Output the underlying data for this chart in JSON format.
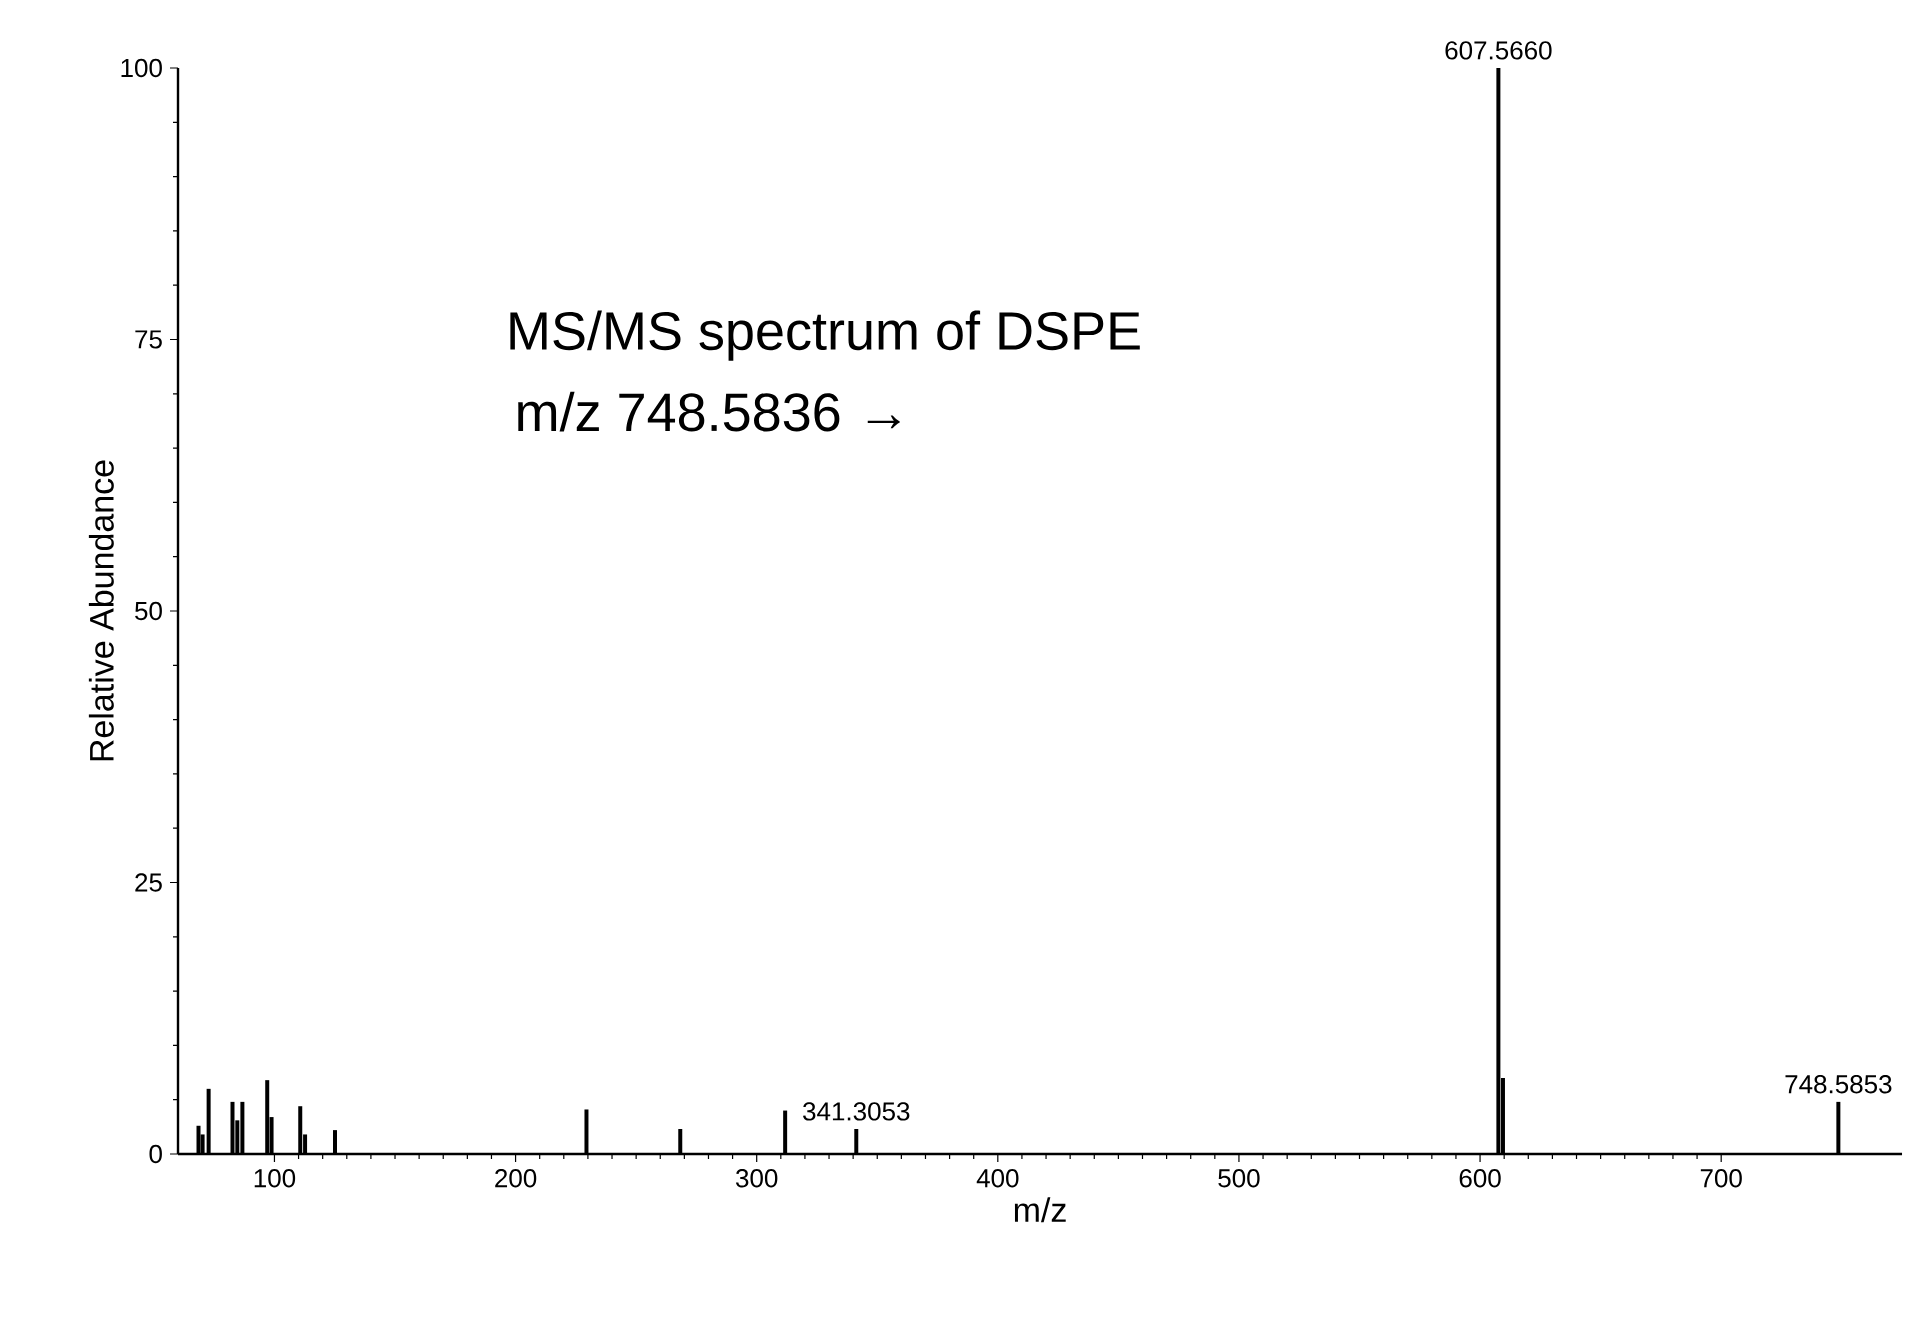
{
  "chart_data": {
    "type": "bar",
    "xlabel": "m/z",
    "ylabel": "Relative Abundance",
    "color": "#000000",
    "x": [
      68.5,
      70.2,
      72.7,
      82.6,
      84.6,
      86.7,
      97.0,
      98.8,
      110.7,
      112.7,
      125.1,
      229.4,
      268.3,
      311.8,
      341.3,
      607.6,
      609.5,
      748.6
    ],
    "values": [
      2.6,
      1.8,
      6.0,
      4.8,
      3.1,
      4.8,
      6.8,
      3.4,
      4.4,
      1.8,
      2.2,
      4.1,
      2.3,
      4.0,
      2.3,
      100,
      7,
      4.8
    ],
    "xlim": [
      60,
      775
    ],
    "ylim": [
      0,
      100
    ],
    "xticks": [
      100,
      200,
      300,
      400,
      500,
      600,
      700
    ],
    "yticks": [
      0,
      25,
      50,
      75,
      100
    ],
    "grid": false,
    "annotations": [
      "MS/MS spectrum of DSPE",
      "m/z 748.5836 →",
      {
        "text": "607.5660",
        "x": 607.6,
        "y": 100
      },
      {
        "text": "341.3053",
        "x": 341.3,
        "y": 2.3
      },
      {
        "text": "748.5853",
        "x": 748.6,
        "y": 4.8
      }
    ]
  }
}
